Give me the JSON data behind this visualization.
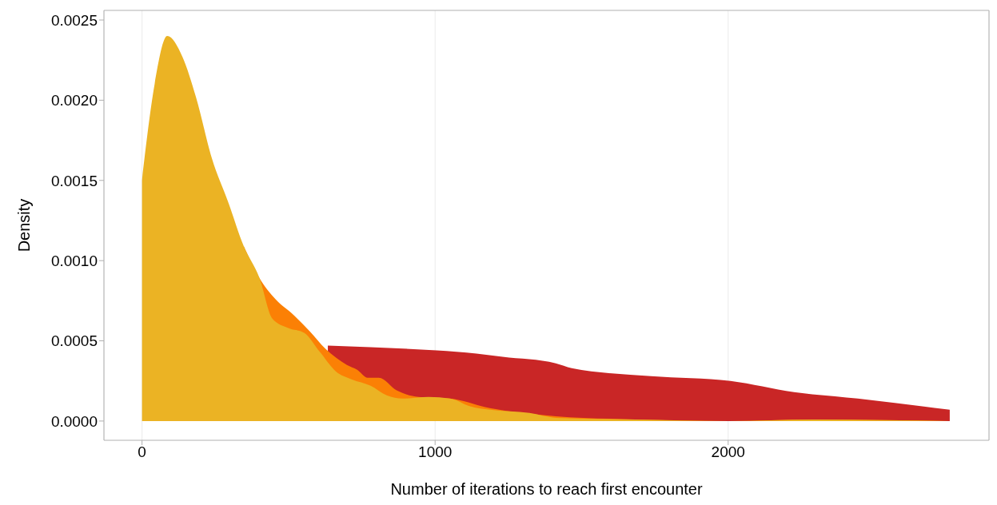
{
  "chart_data": {
    "type": "area",
    "xlabel": "Number of iterations to reach first encounter",
    "ylabel": "Density",
    "xlim": [
      -130,
      2890
    ],
    "xticks": [
      0,
      1000,
      2000
    ],
    "ylim": [
      -0.00012,
      0.00256
    ],
    "yticks": [
      {
        "value": 0,
        "label": "0.0000"
      },
      0.0005,
      {
        "value": 0.001,
        "label": "0.0010"
      },
      0.0015,
      {
        "value": 0.002,
        "label": "0.0020"
      },
      0.0025
    ],
    "grid": "x",
    "legend": false,
    "series": [
      {
        "color": "#c92626",
        "x": [
          634,
          780,
          1005,
          1141,
          1230,
          1412,
          1466,
          1737,
          2008,
          2225,
          2442,
          2756
        ],
        "values": [
          0.00047,
          0.00046,
          0.00044,
          0.00042,
          0.0004,
          0.00036,
          0.00033,
          0.00028,
          0.00025,
          0.00018,
          0.00014,
          7e-05
        ]
      },
      {
        "color": "#fb8005",
        "x": [
          347,
          401,
          455,
          518,
          572,
          626,
          699,
          734,
          770,
          808,
          870,
          943,
          1051,
          1187,
          1412,
          1683,
          2000,
          2300,
          2756
        ],
        "values": [
          0.00109,
          0.00089,
          0.00076,
          0.00066,
          0.00056,
          0.00045,
          0.00035,
          0.00032,
          0.00027,
          0.00027,
          0.00019,
          0.00015,
          0.00014,
          8e-05,
          3e-05,
          1e-05,
          0,
          1e-05,
          0
        ]
      },
      {
        "color": "#ebb324",
        "x": [
          0,
          43,
          86,
          138,
          184,
          238,
          293,
          347,
          401,
          444,
          499,
          553,
          607,
          661,
          715,
          780,
          835,
          889,
          978,
          1051,
          1122,
          1187,
          1322,
          1412,
          1683,
          2000,
          2300,
          2756
        ],
        "values": [
          0.0015,
          0.0021,
          0.0024,
          0.00227,
          0.00202,
          0.00164,
          0.00137,
          0.00109,
          0.00089,
          0.00064,
          0.00058,
          0.00055,
          0.00043,
          0.00031,
          0.00026,
          0.00022,
          0.00016,
          0.00014,
          0.00015,
          0.00014,
          9e-05,
          7e-05,
          5e-05,
          2e-05,
          1e-05,
          0,
          1e-05,
          0
        ]
      }
    ]
  }
}
